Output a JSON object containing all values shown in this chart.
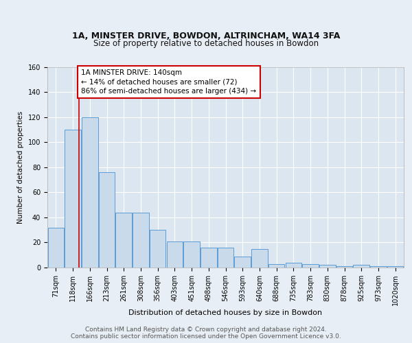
{
  "title1": "1A, MINSTER DRIVE, BOWDON, ALTRINCHAM, WA14 3FA",
  "title2": "Size of property relative to detached houses in Bowdon",
  "xlabel": "Distribution of detached houses by size in Bowdon",
  "ylabel": "Number of detached properties",
  "bar_labels": [
    "71sqm",
    "118sqm",
    "166sqm",
    "213sqm",
    "261sqm",
    "308sqm",
    "356sqm",
    "403sqm",
    "451sqm",
    "498sqm",
    "546sqm",
    "593sqm",
    "640sqm",
    "688sqm",
    "735sqm",
    "783sqm",
    "830sqm",
    "878sqm",
    "925sqm",
    "973sqm",
    "1020sqm"
  ],
  "bar_values": [
    32,
    110,
    120,
    76,
    44,
    44,
    30,
    21,
    21,
    16,
    16,
    9,
    15,
    3,
    4,
    3,
    2,
    1,
    2,
    1,
    1
  ],
  "bar_color": "#c9daea",
  "bar_edge_color": "#5b9bd5",
  "background_color": "#e8eef5",
  "plot_bg_color": "#dce6f0",
  "grid_color": "#ffffff",
  "red_line_x": 1.35,
  "red_box_text": "1A MINSTER DRIVE: 140sqm\n← 14% of detached houses are smaller (72)\n86% of semi-detached houses are larger (434) →",
  "red_box_color": "#cc0000",
  "ylim": [
    0,
    160
  ],
  "yticks": [
    0,
    20,
    40,
    60,
    80,
    100,
    120,
    140,
    160
  ],
  "footer_text": "Contains HM Land Registry data © Crown copyright and database right 2024.\nContains public sector information licensed under the Open Government Licence v3.0.",
  "title1_fontsize": 9,
  "title2_fontsize": 8.5,
  "xlabel_fontsize": 8,
  "ylabel_fontsize": 7.5,
  "tick_fontsize": 7,
  "footer_fontsize": 6.5,
  "annot_fontsize": 7.5
}
